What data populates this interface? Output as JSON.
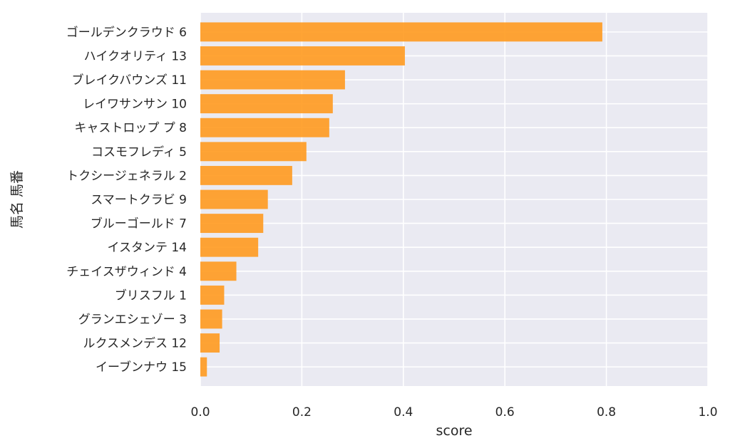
{
  "chart_data": {
    "type": "bar",
    "orientation": "horizontal",
    "xlabel": "score",
    "ylabel": "馬名 馬番",
    "xlim": [
      0.0,
      1.0
    ],
    "xticks": [
      "0.0",
      "0.2",
      "0.4",
      "0.6",
      "0.8",
      "1.0"
    ],
    "grid": true,
    "bar_color": "#ff9a1f",
    "background_color": "#eaeaf2",
    "categories": [
      "ゴールデンクラウド 6",
      "ハイクオリティ 13",
      "ブレイクバウンズ 11",
      "レイワサンサン 10",
      "キャストロップ プ 8",
      "コスモフレディ 5",
      "トクシージェネラル 2",
      "スマートクラビ 9",
      "ブルーゴールド 7",
      "イスタンテ 14",
      "チェイスザウィンド 4",
      "ブリスフル 1",
      "グランエシェゾー 3",
      "ルクスメンデス 12",
      "イーブンナウ 15"
    ],
    "values": [
      0.792,
      0.403,
      0.285,
      0.261,
      0.254,
      0.209,
      0.181,
      0.133,
      0.124,
      0.114,
      0.071,
      0.047,
      0.043,
      0.038,
      0.013
    ]
  }
}
